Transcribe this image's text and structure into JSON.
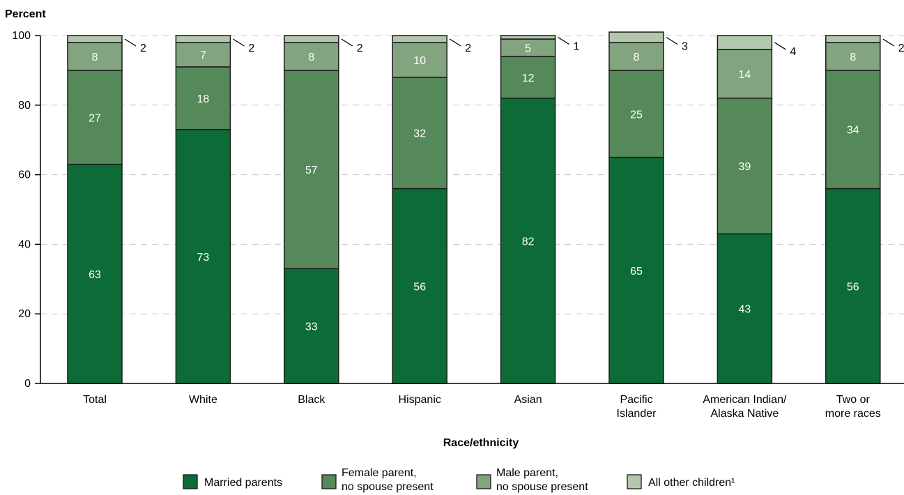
{
  "chart_data": {
    "type": "bar",
    "stacked": true,
    "ylabel": "Percent",
    "xlabel": "Race/ethnicity",
    "ylim": [
      0,
      100
    ],
    "yticks": [
      0,
      20,
      40,
      60,
      80,
      100
    ],
    "grid": "horizontal dashed",
    "legend_position": "bottom",
    "categories": [
      [
        "Total"
      ],
      [
        "White"
      ],
      [
        "Black"
      ],
      [
        "Hispanic"
      ],
      [
        "Asian"
      ],
      [
        "Pacific",
        "Islander"
      ],
      [
        "American Indian/",
        "Alaska Native"
      ],
      [
        "Two or",
        "more races"
      ]
    ],
    "series": [
      {
        "name": "Married parents",
        "legend_lines": [
          "Married parents"
        ],
        "color": "#0d6b38",
        "values": [
          63,
          73,
          33,
          56,
          82,
          65,
          43,
          56
        ]
      },
      {
        "name": "Female parent, no spouse present",
        "legend_lines": [
          "Female parent,",
          "no spouse present"
        ],
        "color": "#568959",
        "values": [
          27,
          18,
          57,
          32,
          12,
          25,
          39,
          34
        ]
      },
      {
        "name": "Male parent, no spouse present",
        "legend_lines": [
          "Male parent,",
          "no spouse present"
        ],
        "color": "#82a47f",
        "values": [
          8,
          7,
          8,
          10,
          5,
          8,
          14,
          8
        ]
      },
      {
        "name": "All other children¹",
        "legend_lines": [
          "All other children¹"
        ],
        "color": "#b2c7ab",
        "values": [
          2,
          2,
          2,
          2,
          1,
          3,
          4,
          2
        ]
      }
    ]
  }
}
